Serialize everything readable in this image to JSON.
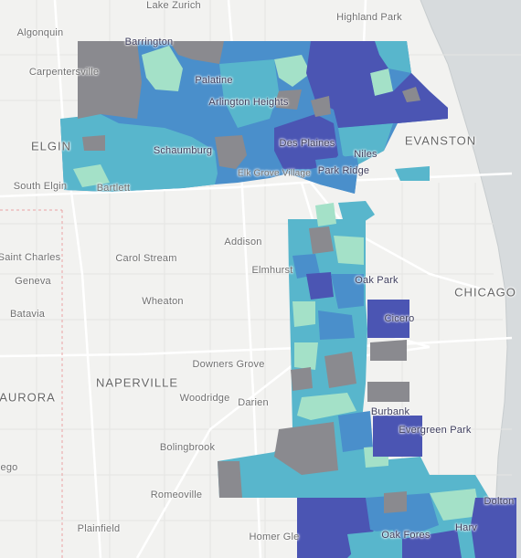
{
  "colors": {
    "land": "#f2f2f0",
    "water": "#d7dbdd",
    "road": "#ffffff",
    "minor_road": "#e6e6e4",
    "grey": "#8a8a8f",
    "dark": "#4b55b3",
    "mid": "#4a8fcb",
    "cyan": "#58b6cc",
    "light": "#a4e1c8"
  },
  "labels": [
    {
      "id": "lake-zurich",
      "text": "Lake Zurich"
    },
    {
      "id": "highland-park",
      "text": "Highland Park"
    },
    {
      "id": "algonquin",
      "text": "Algonquin"
    },
    {
      "id": "barrington",
      "text": "Barrington"
    },
    {
      "id": "carpentersville",
      "text": "Carpentersville"
    },
    {
      "id": "palatine",
      "text": "Palatine"
    },
    {
      "id": "arlington-heights",
      "text": "Arlington Heights"
    },
    {
      "id": "elgin",
      "text": "ELGIN"
    },
    {
      "id": "schaumburg",
      "text": "Schaumburg"
    },
    {
      "id": "des-plaines",
      "text": "Des Plaines"
    },
    {
      "id": "niles",
      "text": "Niles"
    },
    {
      "id": "evanston",
      "text": "EVANSTON"
    },
    {
      "id": "elk-grove-village",
      "text": "Elk Grove Village"
    },
    {
      "id": "park-ridge",
      "text": "Park Ridge"
    },
    {
      "id": "south-elgin",
      "text": "South Elgin"
    },
    {
      "id": "bartlett",
      "text": "Bartlett"
    },
    {
      "id": "addison",
      "text": "Addison"
    },
    {
      "id": "saint-charles",
      "text": "Saint Charles"
    },
    {
      "id": "carol-stream",
      "text": "Carol Stream"
    },
    {
      "id": "elmhurst",
      "text": "Elmhurst"
    },
    {
      "id": "oak-park",
      "text": "Oak Park"
    },
    {
      "id": "geneva",
      "text": "Geneva"
    },
    {
      "id": "chicago",
      "text": "CHICAGO"
    },
    {
      "id": "wheaton",
      "text": "Wheaton"
    },
    {
      "id": "batavia",
      "text": "Batavia"
    },
    {
      "id": "cicero",
      "text": "Cicero"
    },
    {
      "id": "downers-grove",
      "text": "Downers Grove"
    },
    {
      "id": "naperville",
      "text": "NAPERVILLE"
    },
    {
      "id": "aurora",
      "text": "AURORA"
    },
    {
      "id": "woodridge",
      "text": "Woodridge"
    },
    {
      "id": "darien",
      "text": "Darien"
    },
    {
      "id": "burbank",
      "text": "Burbank"
    },
    {
      "id": "evergreen-park",
      "text": "Evergreen Park"
    },
    {
      "id": "bolingbrook",
      "text": "Bolingbrook"
    },
    {
      "id": "plainfield-a",
      "text": "ego"
    },
    {
      "id": "romeoville",
      "text": "Romeoville"
    },
    {
      "id": "plainfield",
      "text": "Plainfield"
    },
    {
      "id": "homer-glen",
      "text": "Homer Gle"
    },
    {
      "id": "oak-forest",
      "text": "Oak Fores"
    },
    {
      "id": "harvey",
      "text": "Harv"
    },
    {
      "id": "dolton",
      "text": "Dolton"
    }
  ]
}
